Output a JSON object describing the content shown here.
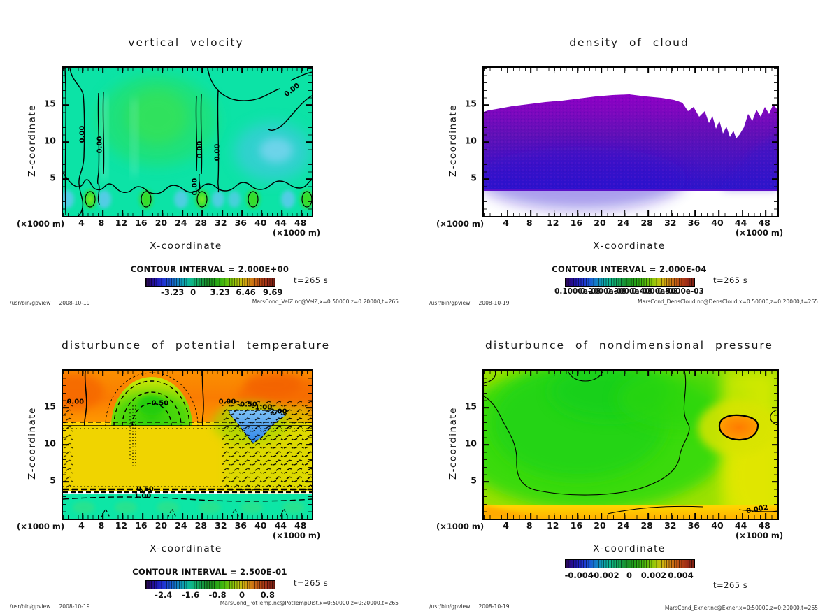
{
  "footer": {
    "program": "/usr/bin/gpview",
    "date": "2008-10-19"
  },
  "chart_data": [
    {
      "type": "contour",
      "title": "vertical velocity",
      "xlabel": "X-coordinate",
      "ylabel": "Z-coordinate",
      "axis_unit": "(×1000 m)",
      "x_range": {
        "min": 0,
        "max": 50000,
        "unit": "m"
      },
      "z_range": {
        "min": 0,
        "max": 20000,
        "unit": "m"
      },
      "x_ticks": {
        "labels": [
          "4",
          "8",
          "12",
          "16",
          "20",
          "24",
          "28",
          "32",
          "36",
          "40",
          "44",
          "48"
        ],
        "pos_pct": [
          8,
          16,
          24,
          32,
          40,
          48,
          56,
          64,
          72,
          80,
          88,
          96
        ]
      },
      "y_ticks": {
        "labels": [
          "15",
          "10",
          "5"
        ],
        "pos_pct": [
          25,
          50,
          75
        ]
      },
      "contour_interval_label": "CONTOUR INTERVAL = 2.000E+00",
      "contour_interval": 2.0,
      "colorbar_ticks": {
        "labels": [
          "-3.23",
          "0",
          "3.23",
          "6.46",
          "9.69"
        ],
        "pos_pct": [
          21,
          37,
          58,
          78,
          99
        ]
      },
      "time_label": "t=265 s",
      "source": "MarsCond_VelZ.nc@VelZ,x=0:50000,z=0:20000,t=265",
      "contour_labels": [
        {
          "text": "0.00",
          "x": 8,
          "y": 45,
          "rot": -90
        },
        {
          "text": "0.00",
          "x": 15,
          "y": 52,
          "rot": -90
        },
        {
          "text": "0.00",
          "x": 55,
          "y": 55,
          "rot": -90
        },
        {
          "text": "0.00",
          "x": 62,
          "y": 57,
          "rot": -90
        },
        {
          "text": "0.00",
          "x": 92,
          "y": 15,
          "rot": -38
        },
        {
          "text": "0.00",
          "x": 53,
          "y": 80,
          "rot": -90
        }
      ]
    },
    {
      "type": "contour",
      "title": "density of cloud",
      "xlabel": "X-coordinate",
      "ylabel": "Z-coordinate",
      "axis_unit": "(×1000 m)",
      "x_range": {
        "min": 0,
        "max": 50000,
        "unit": "m"
      },
      "z_range": {
        "min": 0,
        "max": 20000,
        "unit": "m"
      },
      "x_ticks": {
        "labels": [
          "4",
          "8",
          "12",
          "16",
          "20",
          "24",
          "28",
          "32",
          "36",
          "40",
          "44",
          "48"
        ],
        "pos_pct": [
          8,
          16,
          24,
          32,
          40,
          48,
          56,
          64,
          72,
          80,
          88,
          96
        ]
      },
      "y_ticks": {
        "labels": [
          "15",
          "10",
          "5"
        ],
        "pos_pct": [
          25,
          50,
          75
        ]
      },
      "contour_interval_label": "CONTOUR INTERVAL = 2.000E-04",
      "contour_interval": 0.0002,
      "colorbar_ticks": {
        "labels": [
          "0.1000e-03",
          "0.2000e-03",
          "0.3000e-03",
          "0.4000e-03",
          "0.5000e-03"
        ],
        "pos_pct": [
          10,
          30,
          50,
          70,
          90
        ]
      },
      "time_label": "t=265 s",
      "source": "MarsCond_DensCloud.nc@DensCloud,x=0:50000,z=0:20000,t=265",
      "contour_labels": []
    },
    {
      "type": "contour",
      "title": "disturbunce of potential temperature",
      "xlabel": "X-coordinate",
      "ylabel": "Z-coordinate",
      "axis_unit": "(×1000 m)",
      "x_range": {
        "min": 0,
        "max": 50000,
        "unit": "m"
      },
      "z_range": {
        "min": 0,
        "max": 20000,
        "unit": "m"
      },
      "x_ticks": {
        "labels": [
          "4",
          "8",
          "12",
          "16",
          "20",
          "24",
          "28",
          "32",
          "36",
          "40",
          "44",
          "48"
        ],
        "pos_pct": [
          8,
          16,
          24,
          32,
          40,
          48,
          56,
          64,
          72,
          80,
          88,
          96
        ]
      },
      "y_ticks": {
        "labels": [
          "15",
          "10",
          "5"
        ],
        "pos_pct": [
          25,
          50,
          75
        ]
      },
      "contour_interval_label": "CONTOUR INTERVAL = 2.500E-01",
      "contour_interval": 0.25,
      "colorbar_ticks": {
        "labels": [
          "-2.4",
          "-1.6",
          "-0.8",
          "0",
          "0.8"
        ],
        "pos_pct": [
          14,
          35,
          56,
          75,
          95
        ]
      },
      "time_label": "t=265 s",
      "source": "MarsCond_PotTemp.nc@PotTempDist,x=0:50000,z=0:20000,t=265",
      "contour_labels": [
        {
          "text": "0.00",
          "x": 5,
          "y": 21,
          "rot": 0
        },
        {
          "text": "0.50",
          "x": 39,
          "y": 22,
          "rot": 0
        },
        {
          "text": "0.00",
          "x": 66,
          "y": 21,
          "rot": 0
        },
        {
          "text": "-0.50",
          "x": 74,
          "y": 23,
          "rot": 0
        },
        {
          "text": "-1.00",
          "x": 80,
          "y": 25,
          "rot": 0
        },
        {
          "text": "-2.00",
          "x": 86,
          "y": 28,
          "rot": 0
        },
        {
          "text": "0.50",
          "x": 33,
          "y": 80,
          "rot": 0
        },
        {
          "text": "1.00",
          "x": 32,
          "y": 85,
          "rot": 0
        }
      ]
    },
    {
      "type": "contour",
      "title": "disturbunce of nondimensional pressure",
      "xlabel": "X-coordinate",
      "ylabel": "Z-coordinate",
      "axis_unit": "(×1000 m)",
      "x_range": {
        "min": 0,
        "max": 50000,
        "unit": "m"
      },
      "z_range": {
        "min": 0,
        "max": 20000,
        "unit": "m"
      },
      "x_ticks": {
        "labels": [
          "4",
          "8",
          "12",
          "16",
          "20",
          "24",
          "28",
          "32",
          "36",
          "40",
          "44",
          "48"
        ],
        "pos_pct": [
          8,
          16,
          24,
          32,
          40,
          48,
          56,
          64,
          72,
          80,
          88,
          96
        ]
      },
      "y_ticks": {
        "labels": [
          "15",
          "10",
          "5"
        ],
        "pos_pct": [
          25,
          50,
          75
        ]
      },
      "colorbar_ticks": {
        "labels": [
          "-0.004",
          "-0.002",
          "0",
          "0.002",
          "0.004"
        ],
        "pos_pct": [
          11,
          31,
          50,
          69,
          90
        ]
      },
      "time_label": "t=265 s",
      "source": "MarsCond_Exner.nc@Exner,x=0:50000,z=0:20000,t=265",
      "contour_labels": [
        {
          "text": "0.002",
          "x": 93,
          "y": 94,
          "rot": -10
        }
      ]
    }
  ]
}
